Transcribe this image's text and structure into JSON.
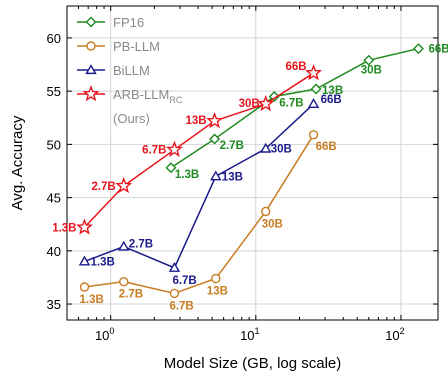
{
  "chart_data": {
    "type": "line",
    "xlabel": "Model Size (GB, log scale)",
    "ylabel": "Avg. Accuracy",
    "xscale": "log",
    "xlim": [
      0.5,
      180
    ],
    "ylim": [
      33.5,
      63
    ],
    "xticks": [
      {
        "value": 1,
        "base": "10",
        "exp": "0"
      },
      {
        "value": 10,
        "base": "10",
        "exp": "1"
      },
      {
        "value": 100,
        "base": "10",
        "exp": "2"
      }
    ],
    "yticks": [
      35,
      40,
      45,
      50,
      55,
      60
    ],
    "grid": true,
    "legend_position": "top-left",
    "series": [
      {
        "name": "FP16",
        "color": "#1f8a1f",
        "marker": "diamond",
        "points": [
          {
            "x": 2.6,
            "y": 47.8,
            "label": "1.3B"
          },
          {
            "x": 5.2,
            "y": 50.5,
            "label": "2.7B"
          },
          {
            "x": 13.4,
            "y": 54.5,
            "label": "6.7B"
          },
          {
            "x": 26,
            "y": 55.2,
            "label": "13B"
          },
          {
            "x": 60,
            "y": 57.9,
            "label": "30B"
          },
          {
            "x": 132,
            "y": 59.0,
            "label": "66B"
          }
        ]
      },
      {
        "name": "PB-LLM",
        "color": "#c97c22",
        "marker": "circle",
        "points": [
          {
            "x": 0.66,
            "y": 36.6,
            "label": "1.3B"
          },
          {
            "x": 1.23,
            "y": 37.1,
            "label": "2.7B"
          },
          {
            "x": 2.75,
            "y": 36.0,
            "label": "6.7B"
          },
          {
            "x": 5.3,
            "y": 37.4,
            "label": "13B"
          },
          {
            "x": 11.7,
            "y": 43.7,
            "label": "30B"
          },
          {
            "x": 25,
            "y": 50.9,
            "label": "66B"
          }
        ]
      },
      {
        "name": "BiLLM",
        "color": "#1a1a8c",
        "marker": "triangle",
        "points": [
          {
            "x": 0.66,
            "y": 39.0,
            "label": "1.3B"
          },
          {
            "x": 1.23,
            "y": 40.4,
            "label": "2.7B"
          },
          {
            "x": 2.75,
            "y": 38.4,
            "label": "6.7B"
          },
          {
            "x": 5.3,
            "y": 47.0,
            "label": "13B"
          },
          {
            "x": 11.7,
            "y": 49.6,
            "label": "30B"
          },
          {
            "x": 25,
            "y": 53.8,
            "label": "66B"
          }
        ]
      },
      {
        "name": "ARB-LLM",
        "name_subscript": "RC",
        "name_line2": "(Ours)",
        "color": "#e8141c",
        "marker": "star",
        "points": [
          {
            "x": 0.66,
            "y": 42.2,
            "label": "1.3B"
          },
          {
            "x": 1.23,
            "y": 46.1,
            "label": "2.7B"
          },
          {
            "x": 2.75,
            "y": 49.5,
            "label": "6.7B"
          },
          {
            "x": 5.2,
            "y": 52.2,
            "label": "13B"
          },
          {
            "x": 11.7,
            "y": 53.8,
            "label": "30B"
          },
          {
            "x": 25,
            "y": 56.7,
            "label": "66B"
          }
        ]
      }
    ]
  }
}
